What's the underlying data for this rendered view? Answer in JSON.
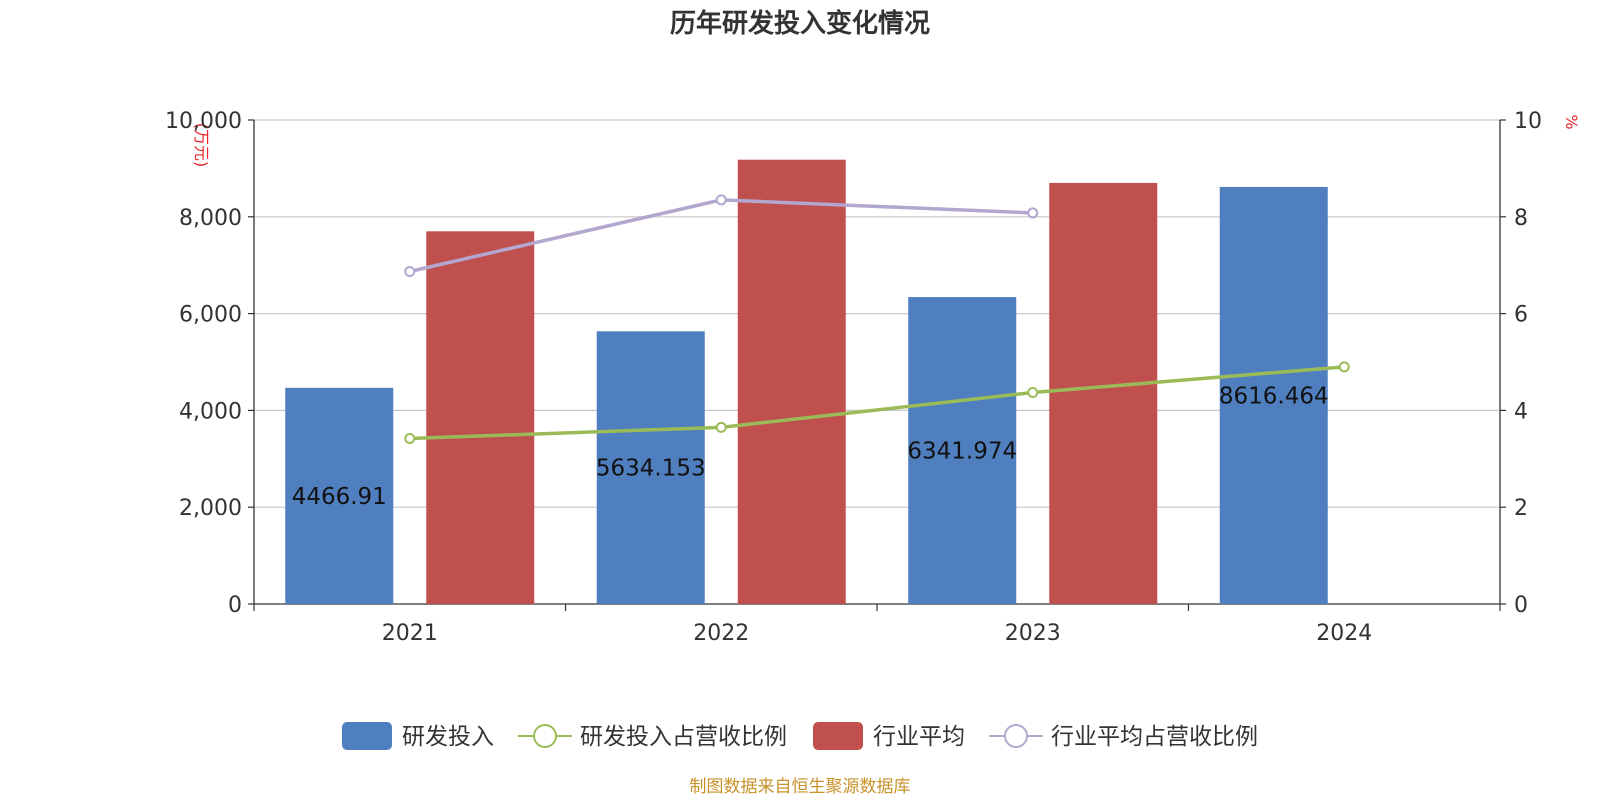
{
  "chart_data": {
    "type": "bar",
    "title": "历年研发投入变化情况",
    "categories": [
      "2021",
      "2022",
      "2023",
      "2024"
    ],
    "y_left": {
      "unit": "(万元)",
      "ticks": [
        "0",
        "2,000",
        "4,000",
        "6,000",
        "8,000",
        "10,000"
      ],
      "range": [
        0,
        10000
      ]
    },
    "y_right": {
      "unit": "%",
      "ticks": [
        "0",
        "2",
        "4",
        "6",
        "8",
        "10"
      ],
      "range": [
        0,
        10
      ]
    },
    "grid": true,
    "legend_position": "bottom",
    "series": [
      {
        "name": "研发投入",
        "kind": "bar",
        "axis": "left",
        "color": "#4f7fbf",
        "values": [
          4466.91,
          5634.153,
          6341.974,
          8616.464
        ],
        "labels": [
          "4466.91",
          "5634.153",
          "6341.974",
          "8616.464"
        ]
      },
      {
        "name": "研发投入占营收比例",
        "kind": "line",
        "axis": "right",
        "color": "#9bbb59",
        "values": [
          3.42,
          3.65,
          4.37,
          4.9
        ]
      },
      {
        "name": "行业平均",
        "kind": "bar",
        "axis": "left",
        "color": "#c0504d",
        "values": [
          7700,
          9180,
          8700,
          null
        ]
      },
      {
        "name": "行业平均占营收比例",
        "kind": "line",
        "axis": "right",
        "color": "#b3a6cf",
        "values": [
          6.87,
          8.35,
          8.08,
          null
        ]
      }
    ]
  },
  "source_note": "制图数据来自恒生聚源数据库"
}
